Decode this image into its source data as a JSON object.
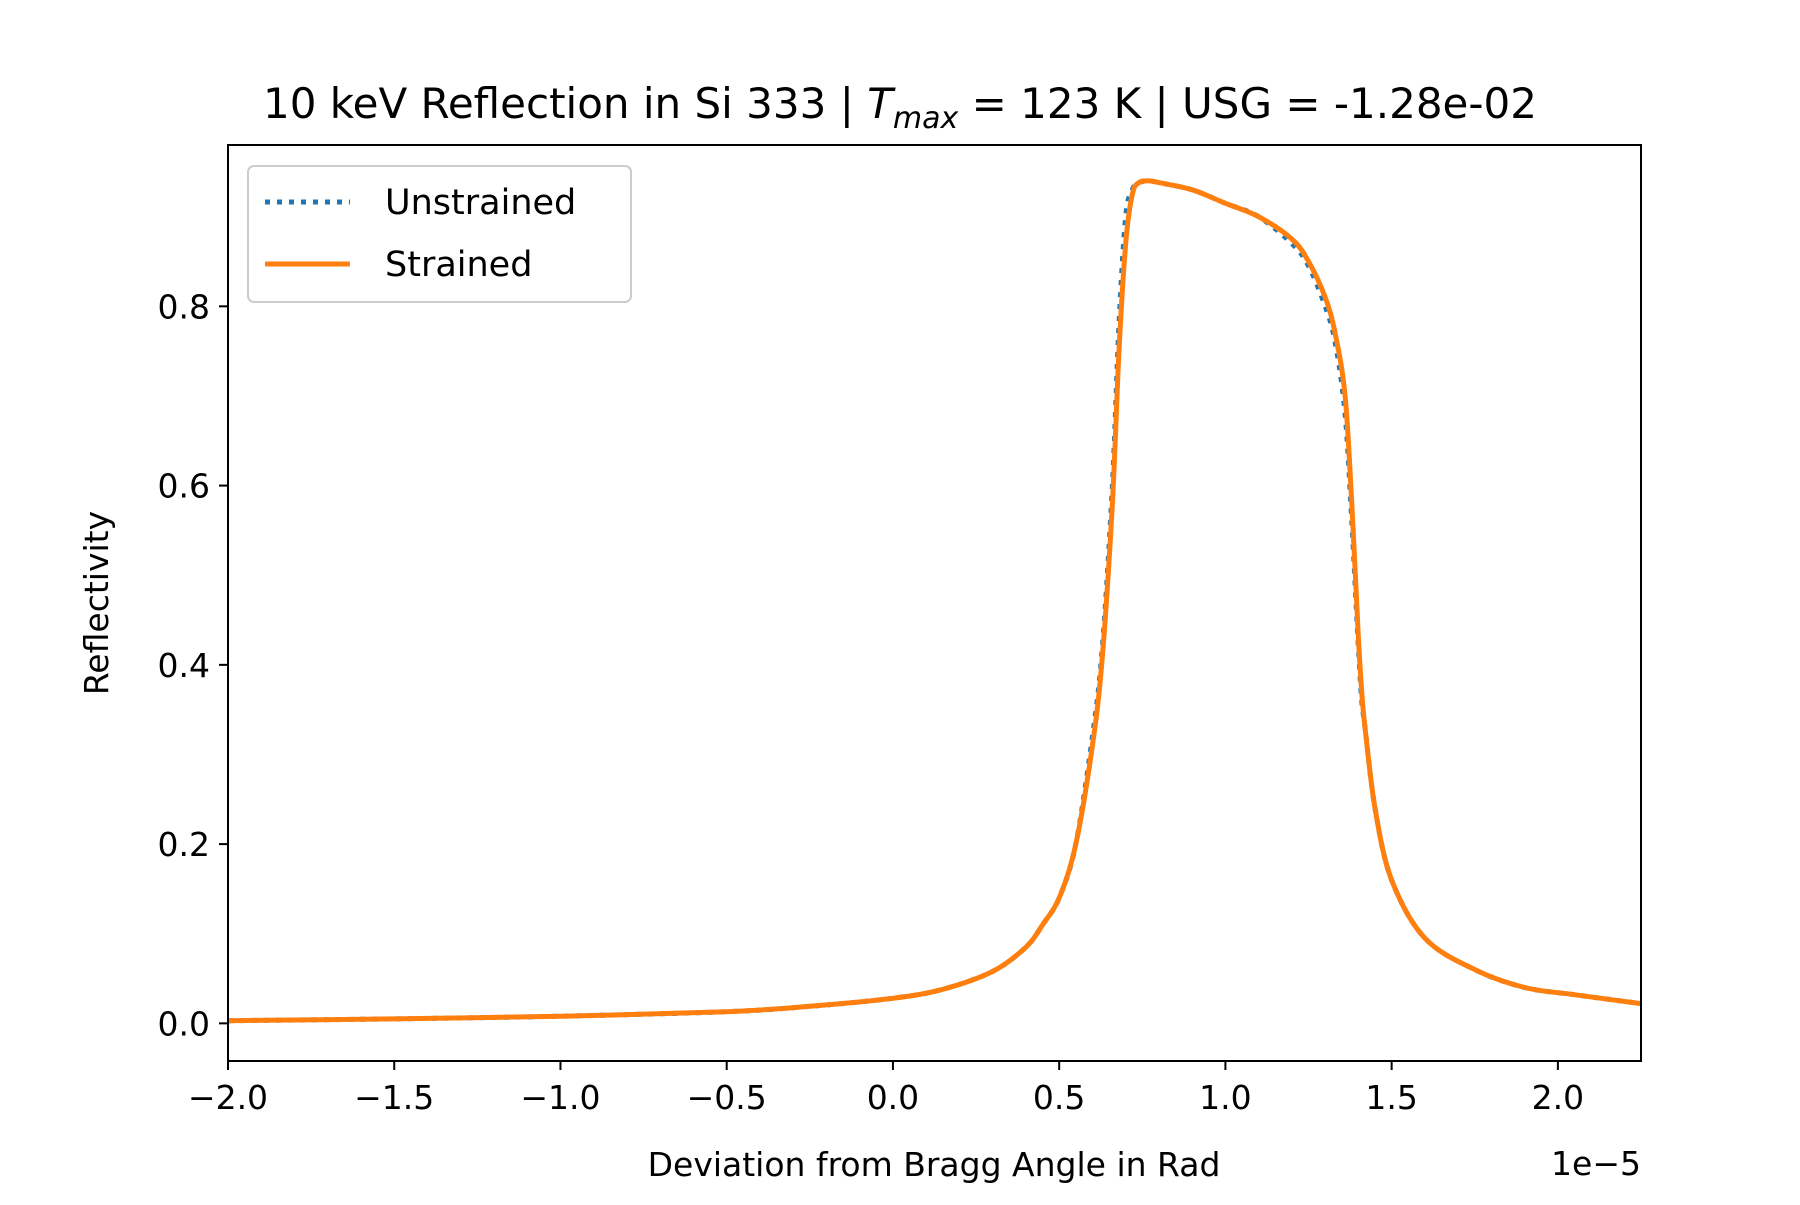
{
  "chart_data": {
    "type": "line",
    "title": {
      "prefix": "10 keV Reflection in Si 333 | ",
      "t_symbol": "T",
      "t_subscript": "max",
      "suffix": " = 123 K | USG = -1.28e-02"
    },
    "xlabel": "Deviation from Bragg Angle in Rad",
    "ylabel": "Reflectivity",
    "x_offset_text": "1e−5",
    "x_ticks": [
      {
        "value": -2.0,
        "label": "−2.0"
      },
      {
        "value": -1.5,
        "label": "−1.5"
      },
      {
        "value": -1.0,
        "label": "−1.0"
      },
      {
        "value": -0.5,
        "label": "−0.5"
      },
      {
        "value": 0.0,
        "label": "0.0"
      },
      {
        "value": 0.5,
        "label": "0.5"
      },
      {
        "value": 1.0,
        "label": "1.0"
      },
      {
        "value": 1.5,
        "label": "1.5"
      },
      {
        "value": 2.0,
        "label": "2.0"
      }
    ],
    "y_ticks": [
      {
        "value": 0.0,
        "label": "0.0"
      },
      {
        "value": 0.2,
        "label": "0.2"
      },
      {
        "value": 0.4,
        "label": "0.4"
      },
      {
        "value": 0.6,
        "label": "0.6"
      },
      {
        "value": 0.8,
        "label": "0.8"
      }
    ],
    "xlim": [
      -2.0,
      2.25
    ],
    "ylim": [
      -0.042,
      0.98
    ],
    "grid": false,
    "legend_position": "top-left",
    "series": [
      {
        "name": "Unstrained",
        "color": "#1f77b4",
        "style": "dotted",
        "x": [
          -2.0,
          -1.5,
          -1.0,
          -0.5,
          -0.25,
          0.0,
          0.15,
          0.3,
          0.4,
          0.45,
          0.5,
          0.55,
          0.6,
          0.63,
          0.66,
          0.68,
          0.7,
          0.72,
          0.74,
          0.77,
          0.8,
          0.9,
          1.0,
          1.1,
          1.2,
          1.25,
          1.3,
          1.33,
          1.36,
          1.38,
          1.4,
          1.41,
          1.42,
          1.45,
          1.5,
          1.6,
          1.75,
          1.9,
          2.05,
          2.25
        ],
        "y": [
          0.003,
          0.005,
          0.008,
          0.013,
          0.019,
          0.028,
          0.038,
          0.058,
          0.085,
          0.11,
          0.14,
          0.2,
          0.32,
          0.42,
          0.6,
          0.78,
          0.9,
          0.93,
          0.938,
          0.94,
          0.938,
          0.93,
          0.915,
          0.9,
          0.87,
          0.845,
          0.8,
          0.76,
          0.68,
          0.56,
          0.42,
          0.36,
          0.33,
          0.24,
          0.16,
          0.095,
          0.06,
          0.04,
          0.032,
          0.022
        ]
      },
      {
        "name": "Strained",
        "color": "#ff7f0e",
        "style": "solid",
        "x": [
          -2.0,
          -1.5,
          -1.0,
          -0.5,
          -0.25,
          0.0,
          0.15,
          0.3,
          0.4,
          0.45,
          0.5,
          0.55,
          0.6,
          0.63,
          0.66,
          0.68,
          0.7,
          0.72,
          0.74,
          0.77,
          0.8,
          0.9,
          1.0,
          1.1,
          1.2,
          1.25,
          1.3,
          1.33,
          1.36,
          1.38,
          1.4,
          1.41,
          1.42,
          1.45,
          1.5,
          1.6,
          1.75,
          1.9,
          2.05,
          2.25
        ],
        "y": [
          0.003,
          0.005,
          0.008,
          0.013,
          0.019,
          0.028,
          0.038,
          0.058,
          0.085,
          0.11,
          0.14,
          0.2,
          0.31,
          0.41,
          0.58,
          0.75,
          0.87,
          0.925,
          0.938,
          0.94,
          0.938,
          0.93,
          0.915,
          0.9,
          0.875,
          0.85,
          0.81,
          0.77,
          0.7,
          0.58,
          0.43,
          0.37,
          0.33,
          0.24,
          0.16,
          0.095,
          0.06,
          0.04,
          0.032,
          0.022
        ]
      }
    ]
  }
}
